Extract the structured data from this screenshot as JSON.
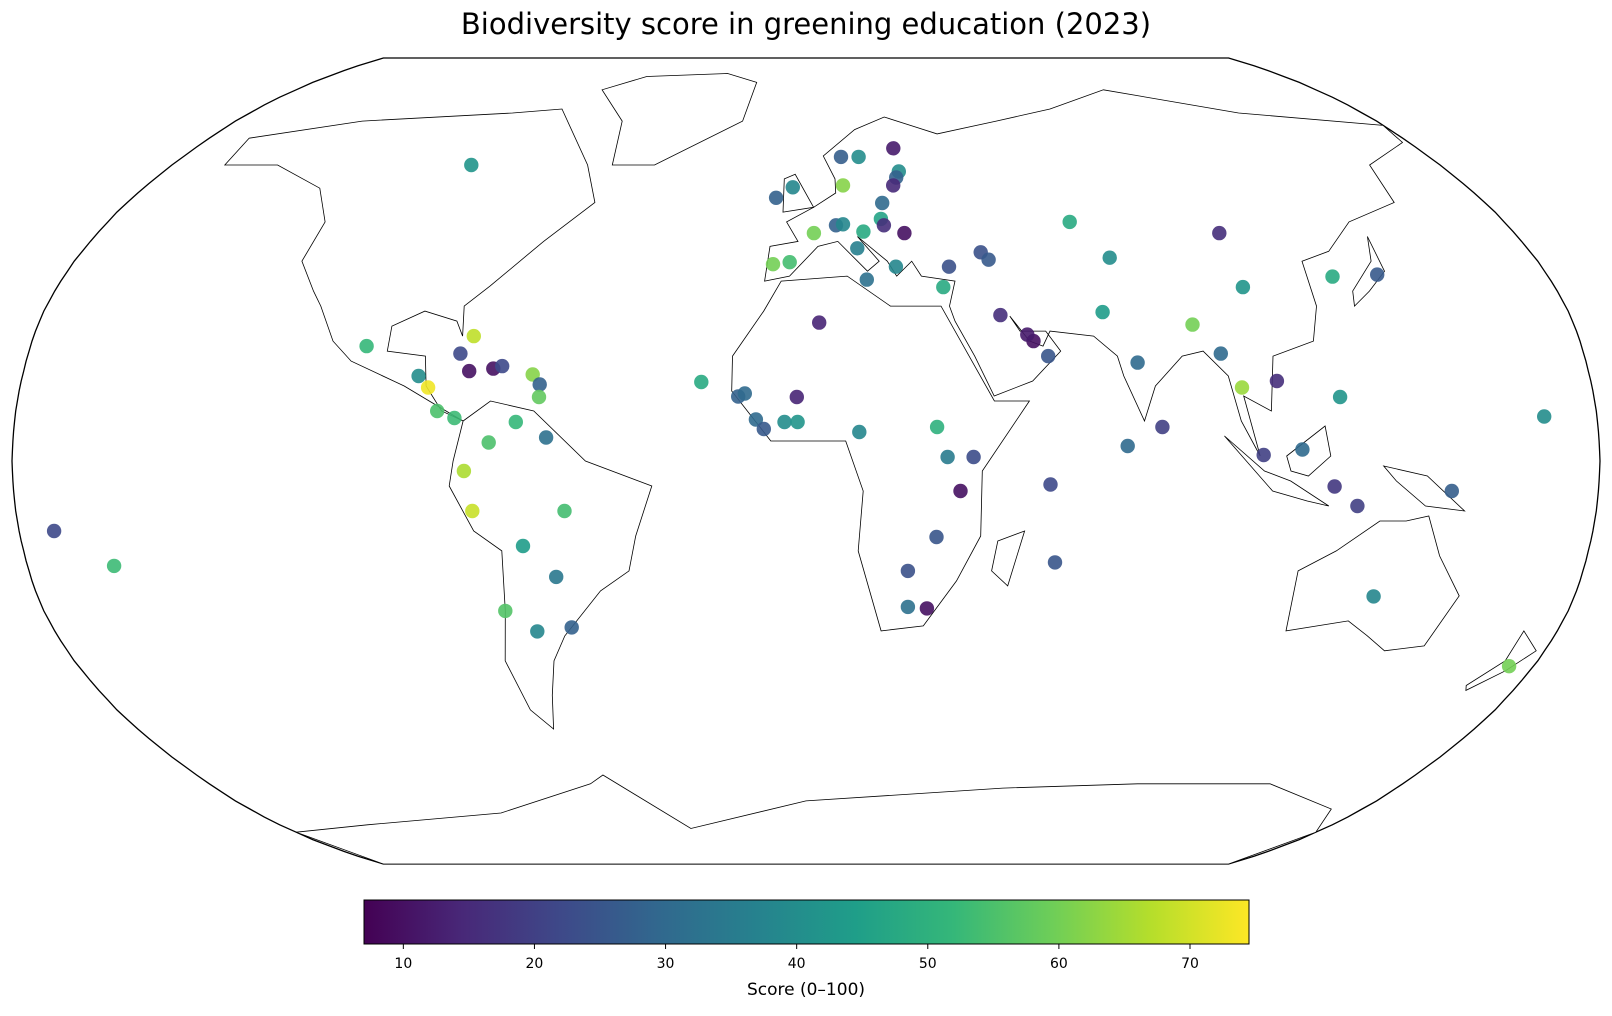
{
  "chart_data": {
    "type": "scatter_map",
    "title": "Biodiversity score in greening education (2023)",
    "projection": "robinson",
    "colormap": "viridis",
    "colorbar_label": "Score (0–100)",
    "clim": [
      7,
      74.5
    ],
    "cticks": [
      10,
      20,
      30,
      40,
      50,
      60,
      70
    ],
    "lat": [
      60,
      23,
      21.5,
      25,
      18,
      18.5,
      19,
      17,
      14.7,
      10,
      8.6,
      17.3,
      15.3,
      12.8,
      7.8,
      4.7,
      3.7,
      -2,
      -10,
      -10,
      -17,
      -23.2,
      -30,
      -34.1,
      -33.3,
      -14,
      -21,
      15.8,
      12.9,
      13.5,
      8.3,
      6.4,
      7.8,
      7.8,
      12.8,
      27.7,
      5.8,
      6.8,
      0.8,
      0.8,
      -6,
      -15.2,
      -22,
      -29.2,
      -29.5,
      -4.7,
      -20.3,
      3,
      6.8,
      19.7,
      27.3,
      29.8,
      21.5,
      14.7,
      16,
      1.2,
      2.3,
      12.8,
      -5.1,
      -9,
      -6,
      8.9,
      -27.1,
      -41.1,
      34.8,
      45.7,
      36.9,
      37.3,
      48,
      40.7,
      21,
      24,
      25.3,
      29.2,
      34.8,
      38.9,
      41.8,
      40.3,
      38.9,
      36.3,
      39.4,
      39.8,
      45.7,
      42.6,
      46,
      47.3,
      47.5,
      48.6,
      47.3,
      45.7,
      51.9,
      55.6,
      55.2,
      53,
      61.8,
      61.8,
      63.7,
      58.6,
      57.3,
      55.6
    ],
    "lon": [
      -95,
      -102,
      -80,
      -77.4,
      -77.5,
      -72,
      -70,
      -89,
      -86.5,
      -84,
      -80,
      -62.8,
      -61,
      -61,
      -66,
      -59,
      -72,
      -77.6,
      -76,
      -55,
      -65,
      -58,
      -71,
      -64.4,
      -56,
      -172,
      -160,
      -24,
      -15.5,
      -14,
      -11.4,
      -9.6,
      -4.9,
      -1.9,
      -2.1,
      3.1,
      12.1,
      29.8,
      32.1,
      38,
      35.1,
      29.9,
      23.6,
      24,
      28.5,
      55.5,
      57.5,
      73,
      81,
      76.5,
      90.6,
      70,
      96,
      99.8,
      108,
      103.8,
      112.6,
      122,
      120,
      125.5,
      146.7,
      168,
      133,
      174,
      105,
      105,
      127.7,
      138.8,
      68,
      75,
      56,
      52.9,
      51.6,
      45.8,
      33,
      35,
      43.4,
      45,
      22,
      14.7,
      -8.1,
      -4,
      2,
      12.8,
      14.6,
      7.7,
      9.5,
      19.4,
      20,
      25,
      20.2,
      10.1,
      -3.6,
      -8,
      10.1,
      15.2,
      25.7,
      26,
      25,
      23.8
    ],
    "values": [
      42,
      52,
      22,
      68,
      10,
      10,
      22,
      40,
      73,
      55,
      53,
      62,
      28,
      58,
      52,
      32,
      55,
      66,
      69,
      54,
      44,
      34,
      56,
      38,
      28,
      22,
      53,
      48,
      28,
      30,
      30,
      26,
      40,
      42,
      14,
      14,
      38,
      50,
      35,
      23,
      10,
      25,
      24,
      32,
      10,
      22,
      25,
      30,
      20,
      30,
      60,
      44,
      30,
      64,
      16,
      20,
      30,
      42,
      18,
      20,
      27,
      40,
      38,
      60,
      42,
      16,
      48,
      26,
      48,
      40,
      25,
      10,
      12,
      16,
      48,
      24,
      24,
      26,
      38,
      32,
      60,
      54,
      60,
      36,
      48,
      28,
      38,
      46,
      16,
      10,
      30,
      62,
      38,
      28,
      27,
      40,
      12,
      40,
      28,
      15
    ]
  }
}
